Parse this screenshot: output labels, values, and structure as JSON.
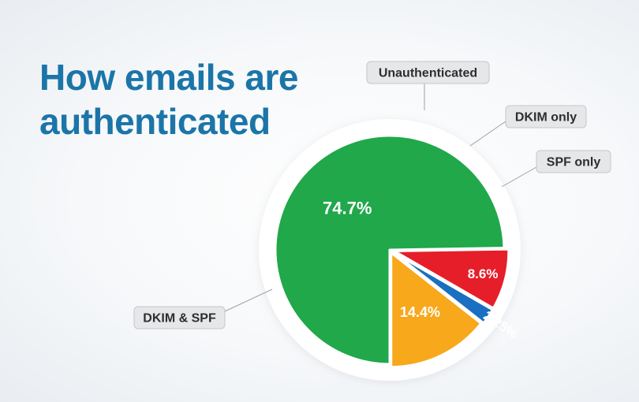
{
  "chart_data": {
    "type": "pie",
    "title": "How emails are authenticated",
    "slices": [
      {
        "name": "DKIM & SPF",
        "value": 74.7,
        "label": "74.7%",
        "color": "#20a84a"
      },
      {
        "name": "Unauthenticated",
        "value": 8.6,
        "label": "8.6%",
        "color": "#e61e2a"
      },
      {
        "name": "DKIM only",
        "value": 2.25,
        "label": "2.25%",
        "color": "#1a6fc0"
      },
      {
        "name": "SPF only",
        "value": 14.4,
        "label": "14.4%",
        "color": "#f7a81b"
      }
    ],
    "legend": "callouts"
  }
}
